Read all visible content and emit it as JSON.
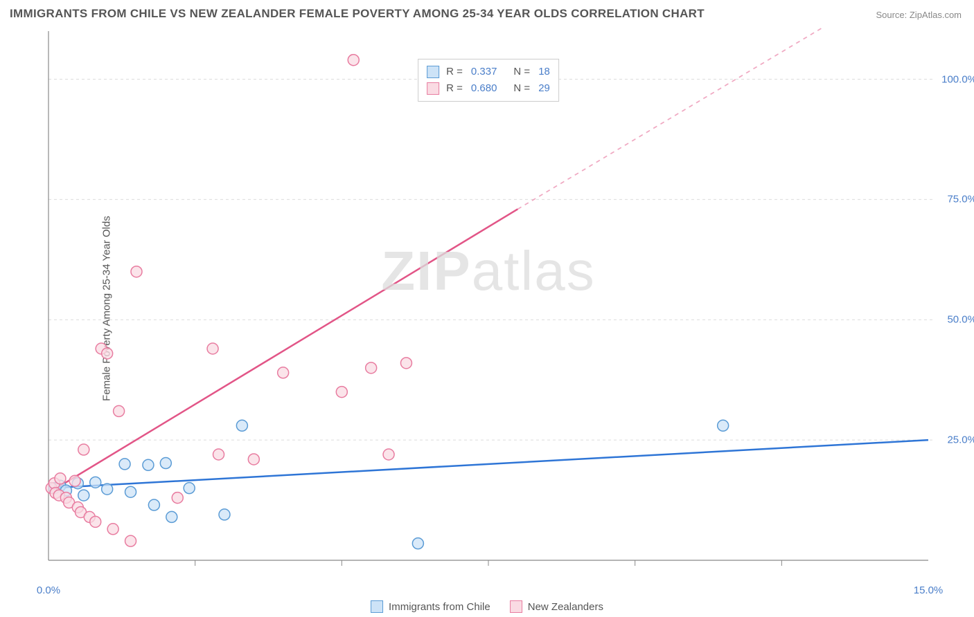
{
  "title": "IMMIGRANTS FROM CHILE VS NEW ZEALANDER FEMALE POVERTY AMONG 25-34 YEAR OLDS CORRELATION CHART",
  "source": "Source: ZipAtlas.com",
  "ylabel": "Female Poverty Among 25-34 Year Olds",
  "watermark_bold": "ZIP",
  "watermark_light": "atlas",
  "chart": {
    "type": "scatter",
    "xlim": [
      0,
      15
    ],
    "ylim": [
      0,
      110
    ],
    "xtick_labels": [
      {
        "val": 0.0,
        "label": "0.0%"
      },
      {
        "val": 15.0,
        "label": "15.0%"
      }
    ],
    "xtick_minor": [
      2.5,
      5.0,
      7.5,
      10.0,
      12.5
    ],
    "ytick_labels": [
      {
        "val": 25.0,
        "label": "25.0%"
      },
      {
        "val": 50.0,
        "label": "50.0%"
      },
      {
        "val": 75.0,
        "label": "75.0%"
      },
      {
        "val": 100.0,
        "label": "100.0%"
      }
    ],
    "grid_color": "#dcdcdc",
    "grid_dash": "4 4",
    "axis_color": "#888888",
    "background": "#ffffff",
    "marker_radius": 8,
    "marker_stroke_width": 1.5,
    "trendline_width": 2.5
  },
  "series": [
    {
      "name": "Immigrants from Chile",
      "fill": "#cde3f7",
      "stroke": "#5a9bd5",
      "R": "0.337",
      "N": "18",
      "trendline": {
        "x1": 0,
        "y1": 15,
        "x2": 15,
        "y2": 25,
        "color": "#2e75d6"
      },
      "points": [
        [
          0.1,
          15
        ],
        [
          0.2,
          15.5
        ],
        [
          0.3,
          14.5
        ],
        [
          0.5,
          16
        ],
        [
          0.6,
          13.5
        ],
        [
          0.8,
          16.2
        ],
        [
          1.0,
          14.8
        ],
        [
          1.3,
          20
        ],
        [
          1.4,
          14.2
        ],
        [
          1.7,
          19.8
        ],
        [
          1.8,
          11.5
        ],
        [
          2.0,
          20.2
        ],
        [
          2.1,
          9.0
        ],
        [
          2.4,
          15.0
        ],
        [
          3.0,
          9.5
        ],
        [
          3.3,
          28.0
        ],
        [
          6.3,
          3.5
        ],
        [
          11.5,
          28.0
        ]
      ]
    },
    {
      "name": "New Zealanders",
      "fill": "#fadbe3",
      "stroke": "#e87ca0",
      "R": "0.680",
      "N": "29",
      "trendline": {
        "x1": 0,
        "y1": 14,
        "x2": 8.0,
        "y2": 73,
        "x3": 14.2,
        "y3": 118,
        "color": "#e25587"
      },
      "points": [
        [
          0.05,
          15
        ],
        [
          0.1,
          16
        ],
        [
          0.12,
          14
        ],
        [
          0.18,
          13.5
        ],
        [
          0.2,
          17
        ],
        [
          0.3,
          13
        ],
        [
          0.35,
          12
        ],
        [
          0.45,
          16.5
        ],
        [
          0.5,
          11
        ],
        [
          0.55,
          10
        ],
        [
          0.6,
          23
        ],
        [
          0.7,
          9
        ],
        [
          0.8,
          8
        ],
        [
          0.9,
          44
        ],
        [
          1.0,
          43
        ],
        [
          1.1,
          6.5
        ],
        [
          1.2,
          31
        ],
        [
          1.4,
          4
        ],
        [
          1.5,
          60
        ],
        [
          2.2,
          13
        ],
        [
          2.8,
          44
        ],
        [
          2.9,
          22
        ],
        [
          3.5,
          21
        ],
        [
          4.0,
          39
        ],
        [
          5.0,
          35
        ],
        [
          5.2,
          104
        ],
        [
          5.5,
          40
        ],
        [
          5.8,
          22
        ],
        [
          6.1,
          41
        ]
      ]
    }
  ],
  "legend_top": [
    {
      "swatch_fill": "#cde3f7",
      "swatch_stroke": "#5a9bd5",
      "R": "0.337",
      "N": "18"
    },
    {
      "swatch_fill": "#fadbe3",
      "swatch_stroke": "#e87ca0",
      "R": "0.680",
      "N": "29"
    }
  ],
  "legend_bottom": [
    {
      "swatch_fill": "#cde3f7",
      "swatch_stroke": "#5a9bd5",
      "label": "Immigrants from Chile"
    },
    {
      "swatch_fill": "#fadbe3",
      "swatch_stroke": "#e87ca0",
      "label": "New Zealanders"
    }
  ]
}
